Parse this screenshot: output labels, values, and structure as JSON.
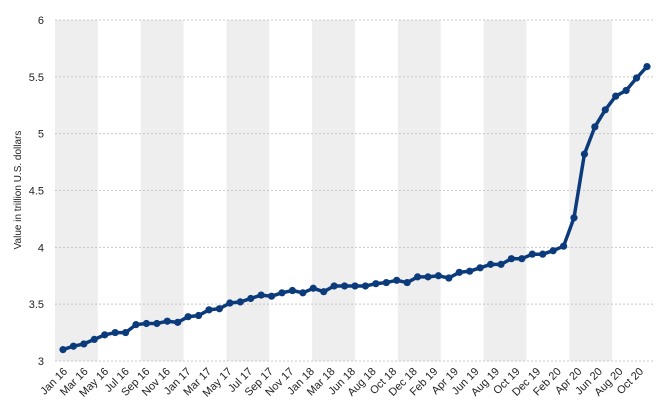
{
  "chart_data": {
    "type": "line",
    "ylabel": "Value in trillion U.S. dollars",
    "ylim": [
      3,
      6
    ],
    "yticks": [
      "3",
      "3.5",
      "4",
      "4.5",
      "5",
      "5.5",
      "6"
    ],
    "grid": "alternating vertical bands",
    "x_tick_labels": [
      "Jan 16",
      "Mar 16",
      "May 16",
      "Jul 16",
      "Sep 16",
      "Nov 16",
      "Jan 17",
      "Mar 17",
      "May 17",
      "Jul 17",
      "Sep 17",
      "Nov 17",
      "Jan 18",
      "Mar 18",
      "Jun 18",
      "Aug 18",
      "Oct 18",
      "Dec 18",
      "Feb 19",
      "Apr 19",
      "Jun 19",
      "Aug 19",
      "Oct 19",
      "Dec 19",
      "Feb 20",
      "Apr 20",
      "Jun 20",
      "Aug 20",
      "Oct 20"
    ],
    "line_color": "#0c3b7c",
    "band_color": "#eeeeee",
    "series": [
      {
        "values": [
          3.1,
          3.13,
          3.15,
          3.19,
          3.23,
          3.25,
          3.25,
          3.32,
          3.33,
          3.33,
          3.35,
          3.34,
          3.39,
          3.4,
          3.45,
          3.46,
          3.51,
          3.52,
          3.55,
          3.58,
          3.57,
          3.6,
          3.62,
          3.6,
          3.64,
          3.61,
          3.66,
          3.66,
          3.66,
          3.66,
          3.68,
          3.69,
          3.71,
          3.69,
          3.74,
          3.74,
          3.75,
          3.73,
          3.78,
          3.79,
          3.82,
          3.85,
          3.85,
          3.9,
          3.9,
          3.94,
          3.94,
          3.97,
          4.01,
          4.26,
          4.82,
          5.06,
          5.21,
          5.33,
          5.38,
          5.49,
          5.59
        ]
      }
    ]
  }
}
